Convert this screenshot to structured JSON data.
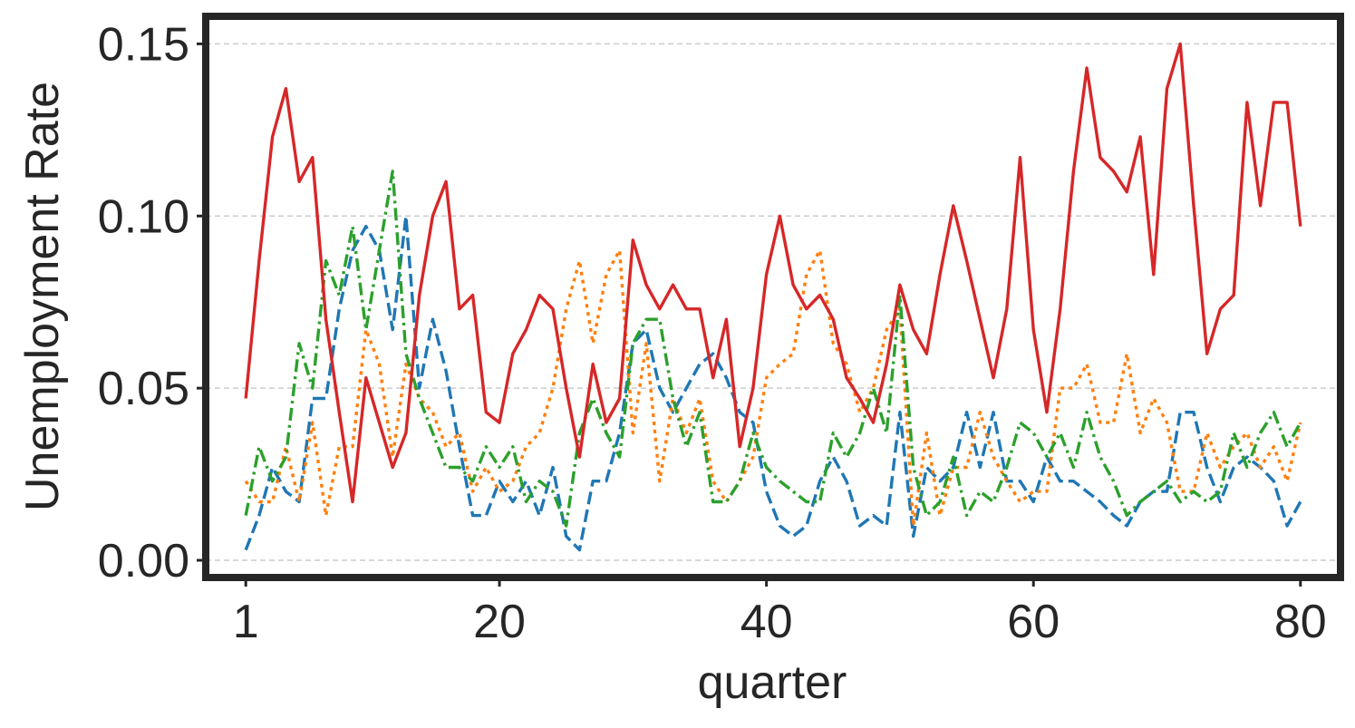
{
  "chart_data": {
    "type": "line",
    "title": "",
    "xlabel": "quarter",
    "ylabel": "Unemployment Rate",
    "xlim": [
      -2,
      83
    ],
    "ylim": [
      -0.005,
      0.158
    ],
    "xticks": [
      1,
      20,
      40,
      60,
      80
    ],
    "xtick_labels": [
      "1",
      "20",
      "40",
      "60",
      "80"
    ],
    "yticks": [
      0.0,
      0.05,
      0.1,
      0.15
    ],
    "ytick_labels": [
      "0.00",
      "0.05",
      "0.10",
      "0.15"
    ],
    "grid": "y-dashed",
    "legend": "none",
    "x": [
      1,
      2,
      3,
      4,
      5,
      6,
      7,
      8,
      9,
      10,
      11,
      12,
      13,
      14,
      15,
      16,
      17,
      18,
      19,
      20,
      21,
      22,
      23,
      24,
      25,
      26,
      27,
      28,
      29,
      30,
      31,
      32,
      33,
      34,
      35,
      36,
      37,
      38,
      39,
      40,
      41,
      42,
      43,
      44,
      45,
      46,
      47,
      48,
      49,
      50,
      51,
      52,
      53,
      54,
      55,
      56,
      57,
      58,
      59,
      60,
      61,
      62,
      63,
      64,
      65,
      66,
      67,
      68,
      69,
      70,
      71,
      72,
      73,
      74,
      75,
      76,
      77,
      78,
      79,
      80
    ],
    "series": [
      {
        "color": "#1f77b4",
        "dash": "dashed",
        "values": [
          0.003,
          0.013,
          0.027,
          0.02,
          0.017,
          0.047,
          0.047,
          0.073,
          0.09,
          0.097,
          0.09,
          0.067,
          0.1,
          0.05,
          0.07,
          0.055,
          0.033,
          0.013,
          0.013,
          0.023,
          0.017,
          0.023,
          0.013,
          0.027,
          0.007,
          0.003,
          0.023,
          0.023,
          0.037,
          0.063,
          0.067,
          0.05,
          0.043,
          0.05,
          0.057,
          0.06,
          0.053,
          0.043,
          0.04,
          0.02,
          0.01,
          0.007,
          0.01,
          0.023,
          0.03,
          0.023,
          0.01,
          0.013,
          0.01,
          0.043,
          0.007,
          0.027,
          0.023,
          0.027,
          0.043,
          0.027,
          0.043,
          0.023,
          0.023,
          0.017,
          0.03,
          0.023,
          0.023,
          0.02,
          0.017,
          0.013,
          0.01,
          0.017,
          0.02,
          0.02,
          0.043,
          0.043,
          0.027,
          0.017,
          0.027,
          0.03,
          0.027,
          0.023,
          0.01,
          0.017
        ]
      },
      {
        "color": "#ff7f0e",
        "dash": "dotted",
        "values": [
          0.023,
          0.017,
          0.017,
          0.033,
          0.017,
          0.04,
          0.013,
          0.033,
          0.033,
          0.067,
          0.057,
          0.03,
          0.057,
          0.047,
          0.043,
          0.033,
          0.037,
          0.02,
          0.027,
          0.02,
          0.023,
          0.033,
          0.037,
          0.05,
          0.073,
          0.087,
          0.063,
          0.083,
          0.09,
          0.037,
          0.063,
          0.023,
          0.047,
          0.037,
          0.047,
          0.023,
          0.017,
          0.023,
          0.03,
          0.053,
          0.057,
          0.06,
          0.083,
          0.09,
          0.063,
          0.057,
          0.043,
          0.05,
          0.067,
          0.073,
          0.01,
          0.037,
          0.013,
          0.027,
          0.027,
          0.043,
          0.03,
          0.023,
          0.017,
          0.02,
          0.02,
          0.05,
          0.05,
          0.057,
          0.04,
          0.04,
          0.06,
          0.037,
          0.047,
          0.04,
          0.02,
          0.02,
          0.037,
          0.027,
          0.033,
          0.037,
          0.027,
          0.033,
          0.023,
          0.04
        ]
      },
      {
        "color": "#2ca02c",
        "dash": "dashdot",
        "values": [
          0.013,
          0.033,
          0.023,
          0.03,
          0.063,
          0.05,
          0.087,
          0.077,
          0.097,
          0.067,
          0.09,
          0.113,
          0.06,
          0.047,
          0.037,
          0.027,
          0.027,
          0.023,
          0.033,
          0.027,
          0.033,
          0.017,
          0.023,
          0.02,
          0.01,
          0.037,
          0.047,
          0.037,
          0.03,
          0.063,
          0.07,
          0.07,
          0.047,
          0.033,
          0.043,
          0.017,
          0.017,
          0.023,
          0.037,
          0.027,
          0.023,
          0.02,
          0.017,
          0.017,
          0.037,
          0.03,
          0.037,
          0.05,
          0.037,
          0.077,
          0.027,
          0.013,
          0.017,
          0.03,
          0.013,
          0.02,
          0.017,
          0.027,
          0.04,
          0.037,
          0.03,
          0.037,
          0.027,
          0.043,
          0.03,
          0.023,
          0.013,
          0.017,
          0.02,
          0.023,
          0.017,
          0.02,
          0.017,
          0.02,
          0.037,
          0.027,
          0.037,
          0.043,
          0.033,
          0.04
        ]
      },
      {
        "color": "#d62728",
        "dash": "solid",
        "values": [
          0.047,
          0.087,
          0.123,
          0.137,
          0.11,
          0.117,
          0.07,
          0.043,
          0.017,
          0.053,
          0.04,
          0.027,
          0.037,
          0.077,
          0.1,
          0.11,
          0.073,
          0.077,
          0.043,
          0.04,
          0.06,
          0.067,
          0.077,
          0.073,
          0.05,
          0.03,
          0.057,
          0.04,
          0.047,
          0.093,
          0.08,
          0.073,
          0.08,
          0.073,
          0.073,
          0.053,
          0.07,
          0.033,
          0.05,
          0.083,
          0.1,
          0.08,
          0.073,
          0.077,
          0.07,
          0.053,
          0.047,
          0.04,
          0.057,
          0.08,
          0.067,
          0.06,
          0.083,
          0.103,
          0.087,
          0.07,
          0.053,
          0.073,
          0.117,
          0.067,
          0.043,
          0.073,
          0.113,
          0.143,
          0.117,
          0.113,
          0.107,
          0.123,
          0.083,
          0.137,
          0.15,
          0.103,
          0.06,
          0.073,
          0.077,
          0.133,
          0.103,
          0.133,
          0.133,
          0.097
        ]
      }
    ]
  }
}
